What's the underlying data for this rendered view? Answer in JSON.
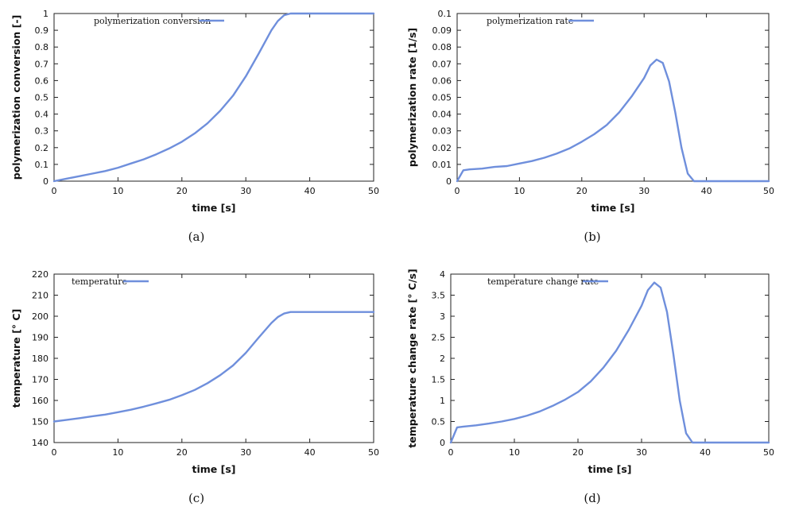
{
  "colors": {
    "series": "#6f8fdc"
  },
  "chart_data": [
    {
      "type": "line",
      "caption": "(a)",
      "xlabel": "time [s]",
      "ylabel": "polymerization conversion [-]",
      "xlim": [
        0,
        50
      ],
      "ylim": [
        0,
        1
      ],
      "xticks": [
        0,
        10,
        20,
        30,
        40,
        50
      ],
      "xtick_labels": [
        "0",
        "10",
        "20",
        "30",
        "40",
        "50"
      ],
      "yticks": [
        0,
        0.1,
        0.2,
        0.3,
        0.4,
        0.5,
        0.6,
        0.7,
        0.8,
        0.9,
        1
      ],
      "ytick_labels": [
        "0",
        "0.1",
        "0.2",
        "0.3",
        "0.4",
        "0.5",
        "0.6",
        "0.7",
        "0.8",
        "0.9",
        "1"
      ],
      "legend_position": "top-left",
      "grid": false,
      "series": [
        {
          "name": "polymerization conversion",
          "x": [
            0,
            2,
            4,
            6,
            8,
            10,
            12,
            14,
            16,
            18,
            20,
            22,
            24,
            26,
            28,
            30,
            32,
            34,
            35,
            36,
            37,
            38,
            40,
            45,
            50
          ],
          "y": [
            0,
            0.015,
            0.03,
            0.045,
            0.06,
            0.08,
            0.105,
            0.13,
            0.16,
            0.195,
            0.235,
            0.285,
            0.345,
            0.42,
            0.51,
            0.625,
            0.76,
            0.9,
            0.955,
            0.99,
            1.0,
            1.0,
            1.0,
            1.0,
            1.0
          ]
        }
      ]
    },
    {
      "type": "line",
      "caption": "(b)",
      "xlabel": "time [s]",
      "ylabel": "polymerization rate [1/s]",
      "xlim": [
        0,
        50
      ],
      "ylim": [
        0,
        0.1
      ],
      "xticks": [
        0,
        10,
        20,
        30,
        40,
        50
      ],
      "xtick_labels": [
        "0",
        "10",
        "20",
        "30",
        "40",
        "50"
      ],
      "yticks": [
        0,
        0.01,
        0.02,
        0.03,
        0.04,
        0.05,
        0.06,
        0.07,
        0.08,
        0.09,
        0.1
      ],
      "ytick_labels": [
        "0",
        "0.01",
        "0.02",
        "0.03",
        "0.04",
        "0.05",
        "0.06",
        "0.07",
        "0.08",
        "0.09",
        "0.1"
      ],
      "legend_position": "top-left",
      "grid": false,
      "series": [
        {
          "name": "polymerization rate",
          "x": [
            0,
            1,
            2,
            4,
            6,
            8,
            10,
            12,
            14,
            16,
            18,
            20,
            22,
            24,
            26,
            28,
            30,
            31,
            32,
            33,
            34,
            35,
            36,
            37,
            38,
            40,
            50
          ],
          "y": [
            0,
            0.0065,
            0.007,
            0.0075,
            0.0085,
            0.009,
            0.0105,
            0.012,
            0.014,
            0.0165,
            0.0195,
            0.0235,
            0.028,
            0.0335,
            0.041,
            0.0505,
            0.0615,
            0.069,
            0.0725,
            0.0705,
            0.0595,
            0.041,
            0.02,
            0.0045,
            0,
            0,
            0
          ]
        }
      ]
    },
    {
      "type": "line",
      "caption": "(c)",
      "xlabel": "time [s]",
      "ylabel": "temperature [° C]",
      "xlim": [
        0,
        50
      ],
      "ylim": [
        140,
        220
      ],
      "xticks": [
        0,
        10,
        20,
        30,
        40,
        50
      ],
      "xtick_labels": [
        "0",
        "10",
        "20",
        "30",
        "40",
        "50"
      ],
      "yticks": [
        140,
        150,
        160,
        170,
        180,
        190,
        200,
        210,
        220
      ],
      "ytick_labels": [
        "140",
        "150",
        "160",
        "170",
        "180",
        "190",
        "200",
        "210",
        "220"
      ],
      "legend_position": "top-left",
      "grid": false,
      "series": [
        {
          "name": "temperature",
          "x": [
            0,
            2,
            4,
            6,
            8,
            10,
            12,
            14,
            16,
            18,
            20,
            22,
            24,
            26,
            28,
            30,
            32,
            34,
            35,
            36,
            37,
            38,
            40,
            45,
            50
          ],
          "y": [
            150,
            150.8,
            151.6,
            152.5,
            153.3,
            154.4,
            155.6,
            157,
            158.6,
            160.3,
            162.5,
            165,
            168.2,
            172,
            176.6,
            182.6,
            189.8,
            196.8,
            199.6,
            201.3,
            202,
            202,
            202,
            202,
            202
          ]
        }
      ]
    },
    {
      "type": "line",
      "caption": "(d)",
      "xlabel": "time [s]",
      "ylabel": "temperature change rate [° C/s]",
      "xlim": [
        0,
        50
      ],
      "ylim": [
        0,
        4
      ],
      "xticks": [
        0,
        10,
        20,
        30,
        40,
        50
      ],
      "xtick_labels": [
        "0",
        "10",
        "20",
        "30",
        "40",
        "50"
      ],
      "yticks": [
        0,
        0.5,
        1,
        1.5,
        2,
        2.5,
        3,
        3.5,
        4
      ],
      "ytick_labels": [
        "0",
        "0.5",
        "1",
        "1.5",
        "2",
        "2.5",
        "3",
        "3.5",
        "4"
      ],
      "legend_position": "top-left",
      "grid": false,
      "series": [
        {
          "name": "temperature change rate",
          "x": [
            0,
            1,
            2,
            4,
            6,
            8,
            10,
            12,
            14,
            16,
            18,
            20,
            22,
            24,
            26,
            28,
            30,
            31,
            32,
            33,
            34,
            35,
            36,
            37,
            38,
            40,
            50
          ],
          "y": [
            0,
            0.36,
            0.38,
            0.41,
            0.45,
            0.5,
            0.56,
            0.64,
            0.74,
            0.87,
            1.02,
            1.2,
            1.45,
            1.78,
            2.18,
            2.68,
            3.25,
            3.62,
            3.8,
            3.68,
            3.1,
            2.1,
            1.0,
            0.22,
            0,
            0,
            0
          ]
        }
      ]
    }
  ]
}
